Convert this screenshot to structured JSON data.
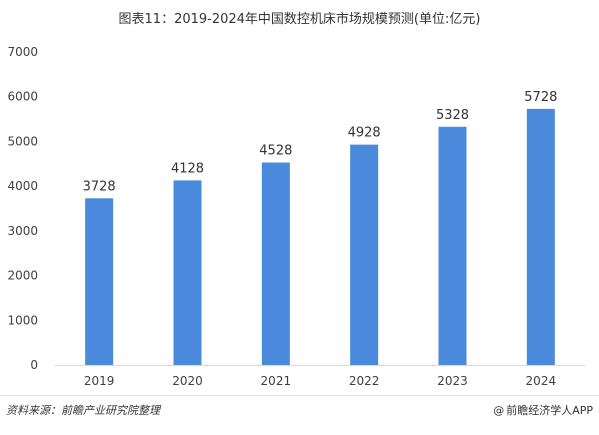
{
  "title": "图表11：2019-2024年中国数控机床市场规模预测(单位:亿元)",
  "source": "资料来源：前瞻产业研究院整理",
  "brand": {
    "at_icon": "at-icon",
    "label": "前瞻经济学人APP"
  },
  "colors": {
    "bar": "#4a89dc",
    "axis": "#d9d9d9",
    "text": "#404040"
  },
  "chart_data": {
    "type": "bar",
    "title": "图表11：2019-2024年中国数控机床市场规模预测(单位:亿元)",
    "categories": [
      "2019",
      "2020",
      "2021",
      "2022",
      "2023",
      "2024"
    ],
    "values": [
      3728,
      4128,
      4528,
      4928,
      5328,
      5728
    ],
    "data_labels": [
      "3728",
      "4128",
      "4528",
      "4928",
      "5328",
      "5728"
    ],
    "ylim": [
      0,
      7000
    ],
    "yticks": [
      0,
      1000,
      2000,
      3000,
      4000,
      5000,
      6000,
      7000
    ],
    "ytick_labels": [
      "0",
      "1000",
      "2000",
      "3000",
      "4000",
      "5000",
      "6000",
      "7000"
    ],
    "xlabel": "",
    "ylabel": "",
    "grid": false,
    "legend": "none"
  }
}
